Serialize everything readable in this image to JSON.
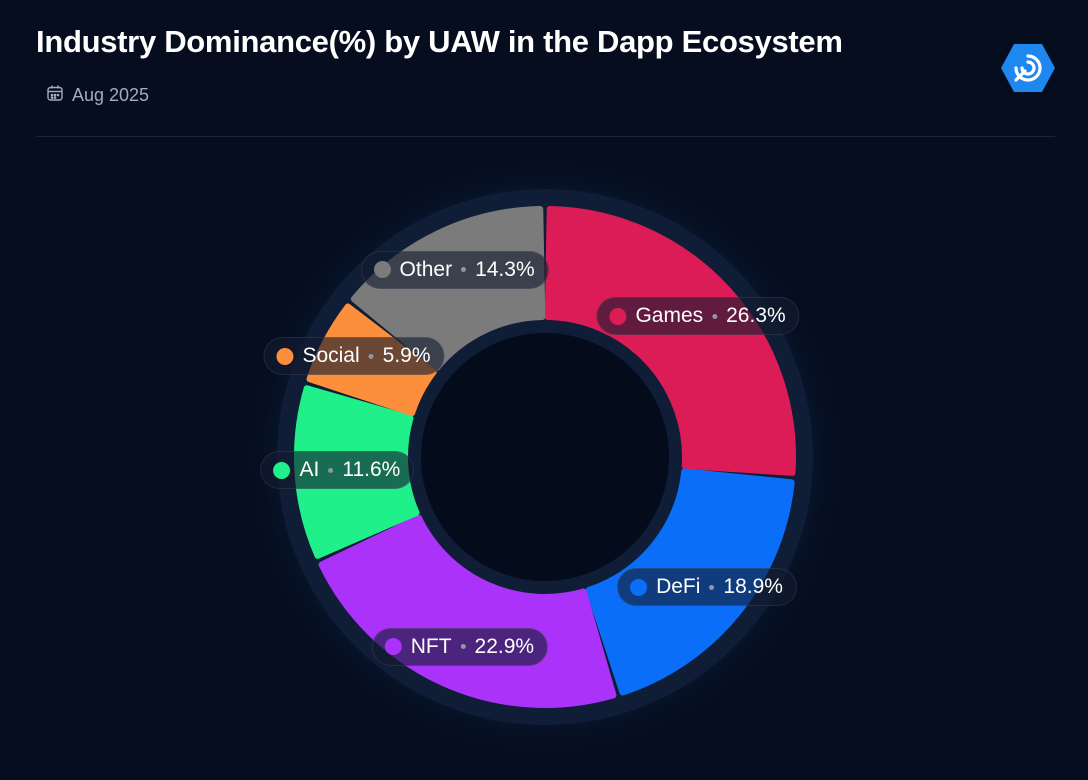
{
  "header": {
    "title": "Industry Dominance(%) by UAW in the Dapp Ecosystem",
    "date": "Aug 2025",
    "icons": {
      "calendar": "calendar-icon",
      "logo": "dappradar-logo-icon"
    }
  },
  "colors": {
    "background": "#050d1e",
    "accent": "#1e88f0"
  },
  "chart_data": {
    "type": "pie",
    "variant": "donut",
    "categories": [
      "Games",
      "DeFi",
      "NFT",
      "AI",
      "Social",
      "Other"
    ],
    "values": [
      26.3,
      18.9,
      22.9,
      11.6,
      5.9,
      14.3
    ],
    "unit": "%",
    "colors": [
      "#dc1c56",
      "#0b6ef9",
      "#ab33f9",
      "#20f08a",
      "#fc8e3c",
      "#7b7b7b"
    ],
    "labels": [
      "Games",
      "DeFi",
      "NFT",
      "AI",
      "Social",
      "Other"
    ],
    "value_labels": [
      "26.3%",
      "18.9%",
      "22.9%",
      "11.6%",
      "5.9%",
      "14.3%"
    ],
    "legend": "none"
  }
}
